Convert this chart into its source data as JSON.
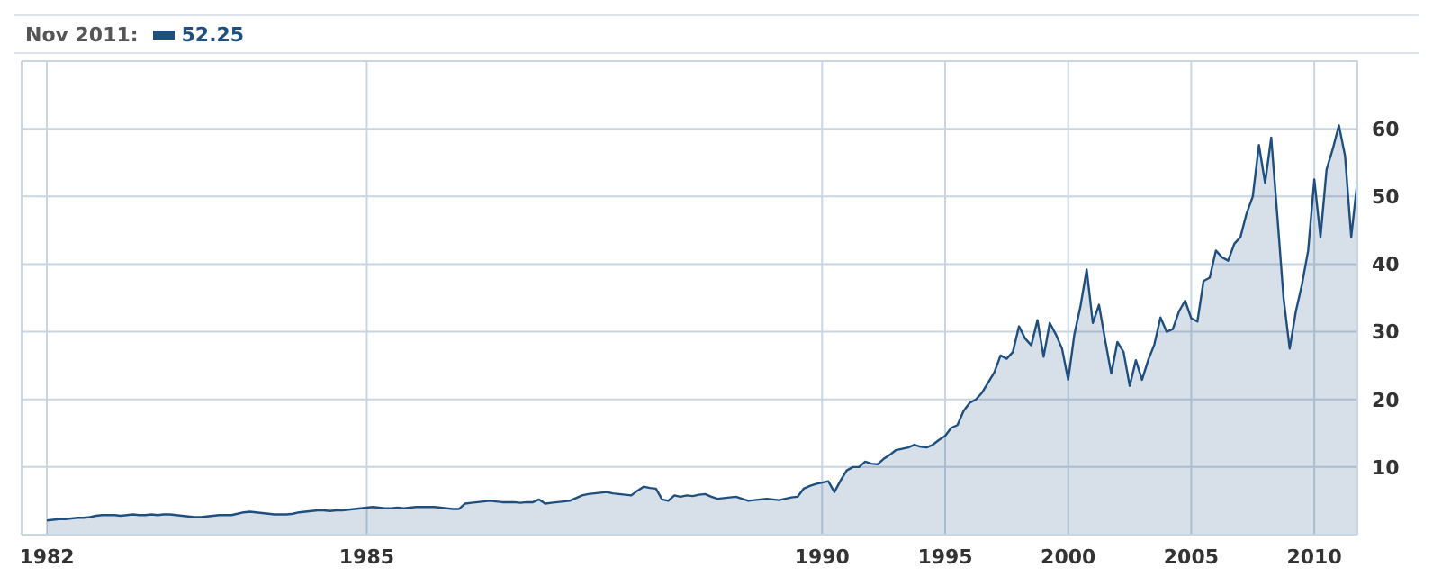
{
  "chart_data": {
    "type": "area",
    "legend_title": "Nov 2011:",
    "annotations": [
      "52.25"
    ],
    "grid": true,
    "ylim": [
      0,
      70
    ],
    "yticks": [
      10,
      20,
      30,
      40,
      50,
      60
    ],
    "categories": [
      "1982",
      null,
      null,
      null,
      null,
      null,
      null,
      null,
      null,
      null,
      null,
      null,
      null,
      null,
      null,
      null,
      null,
      null,
      null,
      null,
      null,
      null,
      null,
      null,
      null,
      null,
      null,
      null,
      null,
      null,
      null,
      null,
      null,
      null,
      null,
      null,
      null,
      null,
      null,
      null,
      null,
      null,
      null,
      null,
      null,
      null,
      null,
      null,
      null,
      null,
      null,
      null,
      "1985",
      null,
      null,
      null,
      null,
      null,
      null,
      null,
      null,
      null,
      null,
      null,
      null,
      null,
      null,
      null,
      null,
      null,
      null,
      null,
      null,
      null,
      null,
      null,
      null,
      null,
      null,
      null,
      null,
      null,
      null,
      null,
      null,
      null,
      null,
      null,
      null,
      null,
      null,
      null,
      null,
      null,
      null,
      null,
      null,
      null,
      null,
      null,
      null,
      null,
      null,
      null,
      null,
      null,
      null,
      null,
      null,
      null,
      null,
      null,
      null,
      null,
      null,
      null,
      null,
      null,
      null,
      null,
      null,
      null,
      null,
      null,
      null,
      null,
      "1990",
      null,
      null,
      null,
      null,
      null,
      null,
      null,
      null,
      null,
      null,
      null,
      null,
      null,
      null,
      null,
      null,
      null,
      null,
      null,
      "1995",
      null,
      null,
      null,
      null,
      null,
      null,
      null,
      null,
      null,
      null,
      null,
      null,
      null,
      null,
      null,
      null,
      null,
      null,
      null,
      "2000",
      null,
      null,
      null,
      null,
      null,
      null,
      null,
      null,
      null,
      null,
      null,
      null,
      null,
      null,
      null,
      null,
      null,
      null,
      null,
      "2005",
      null,
      null,
      null,
      null,
      null,
      null,
      null,
      null,
      null,
      null,
      null,
      null,
      null,
      null,
      null,
      null,
      null,
      null,
      null,
      "2010",
      null,
      null,
      null,
      null,
      null,
      null,
      null
    ],
    "series": [
      {
        "color": "#1f4f7f",
        "values": [
          2.1,
          2.2,
          2.3,
          2.3,
          2.4,
          2.5,
          2.5,
          2.6,
          2.8,
          2.9,
          2.9,
          2.9,
          2.8,
          2.9,
          3.0,
          2.9,
          2.9,
          3.0,
          2.9,
          3.0,
          3.0,
          2.9,
          2.8,
          2.7,
          2.6,
          2.6,
          2.7,
          2.8,
          2.9,
          2.9,
          2.9,
          3.1,
          3.3,
          3.4,
          3.3,
          3.2,
          3.1,
          3.0,
          3.0,
          3.0,
          3.1,
          3.3,
          3.4,
          3.5,
          3.6,
          3.6,
          3.5,
          3.6,
          3.6,
          3.7,
          3.8,
          3.9,
          4.0,
          4.1,
          4.0,
          3.9,
          3.9,
          4.0,
          3.9,
          4.0,
          4.1,
          4.1,
          4.1,
          4.1,
          4.0,
          3.9,
          3.8,
          3.8,
          4.6,
          4.7,
          4.8,
          4.9,
          5.0,
          4.9,
          4.8,
          4.8,
          4.8,
          4.7,
          4.8,
          4.8,
          5.2,
          4.6,
          4.7,
          4.8,
          4.9,
          5.0,
          5.4,
          5.8,
          6.0,
          6.1,
          6.2,
          6.3,
          6.1,
          6.0,
          5.9,
          5.8,
          6.5,
          7.1,
          6.9,
          6.8,
          5.2,
          5.0,
          5.8,
          5.6,
          5.8,
          5.7,
          5.9,
          6.0,
          5.6,
          5.3,
          5.4,
          5.5,
          5.6,
          5.3,
          5.0,
          5.1,
          5.2,
          5.3,
          5.2,
          5.1,
          5.3,
          5.5,
          5.6,
          6.8,
          7.2,
          7.5,
          7.7,
          7.9,
          6.3,
          8.0,
          9.5,
          10,
          10,
          10.8,
          10.5,
          10.4,
          11.2,
          11.8,
          12.5,
          12.7,
          12.9,
          13.3,
          13.0,
          12.9,
          13.3,
          14,
          14.6,
          15.8,
          16.2,
          18.3,
          19.5,
          20,
          21,
          22.5,
          24,
          26.5,
          26,
          27,
          30.8,
          29,
          28,
          31.7,
          26.3,
          31.3,
          29.6,
          27.5,
          22.9,
          29.6,
          33.8,
          39.2,
          31.3,
          34,
          28.8,
          23.8,
          28.5,
          27,
          22,
          25.8,
          22.9,
          25.8,
          28.1,
          32.1,
          30,
          30.4,
          33,
          34.6,
          32,
          31.5,
          37.5,
          38,
          42,
          41,
          40.5,
          43,
          44,
          47.5,
          50,
          57.6,
          52,
          58.7,
          47,
          35,
          27.5,
          33,
          37,
          42,
          52.5,
          44,
          54,
          57,
          60.5,
          56,
          44,
          52.25
        ]
      }
    ]
  }
}
